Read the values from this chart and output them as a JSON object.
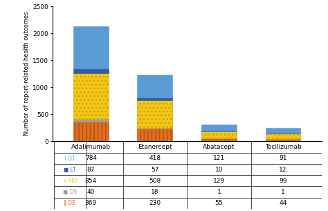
{
  "categories": [
    "Adalimumab",
    "Etanercept",
    "Abatacept",
    "Tocilizumab"
  ],
  "series": {
    "OT": [
      784,
      418,
      121,
      91
    ],
    "LT": [
      87,
      57,
      10,
      12
    ],
    "HO": [
      854,
      508,
      129,
      99
    ],
    "DS": [
      40,
      18,
      1,
      1
    ],
    "DE": [
      369,
      230,
      55,
      44
    ]
  },
  "stack_order": [
    "DE",
    "DS",
    "HO",
    "LT",
    "OT"
  ],
  "colors": {
    "OT": "#5B9BD5",
    "LT": "#2E5FA3",
    "HO": "#F5C518",
    "DS": "#A0A0A0",
    "DE": "#E07020"
  },
  "hatches": {
    "OT": "///",
    "LT": "",
    "HO": "...",
    "DS": "",
    "DE": "|||"
  },
  "edge_colors": {
    "OT": "#5B9BD5",
    "LT": "#2E5FA3",
    "HO": "#C8A800",
    "DS": "#888888",
    "DE": "#C05010"
  },
  "ylabel": "Number of report-related health outcomes",
  "ylim": [
    0,
    2500
  ],
  "yticks": [
    0,
    500,
    1000,
    1500,
    2000,
    2500
  ],
  "table_rows": [
    "OT",
    "LT",
    "HO",
    "DS",
    "DE"
  ],
  "row_label_symbols": {
    "OT": "\\ OT",
    "LT": "■ LT",
    "HO": "× HO",
    "DS": "■ DS",
    "DE": "‖ DE"
  },
  "row_label_colors": {
    "OT": "#5B9BD5",
    "LT": "#2E5FA3",
    "HO": "#F5C518",
    "DS": "#A0A0A0",
    "DE": "#E07020"
  },
  "background_color": "#ffffff",
  "bar_width": 0.55
}
